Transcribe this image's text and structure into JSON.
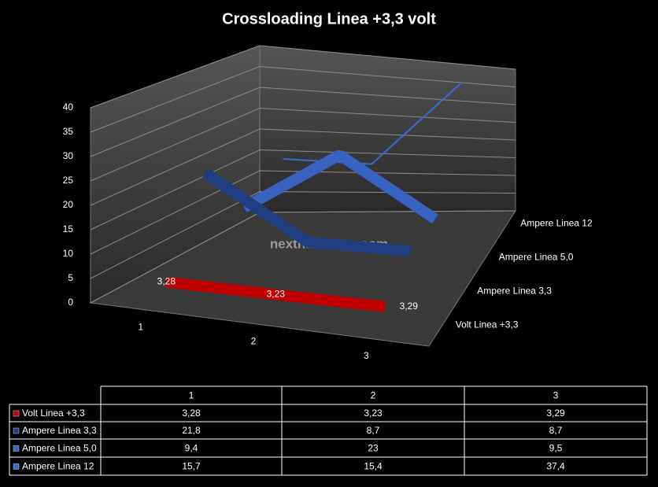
{
  "chart_data": {
    "type": "line3d",
    "title": "Crossloading Linea +3,3 volt",
    "watermark": "nexthardware.com",
    "categories": [
      "1",
      "2",
      "3"
    ],
    "series": [
      {
        "name": "Volt Linea +3,3",
        "color": "#c00000",
        "values": [
          3.28,
          3.23,
          3.29
        ],
        "value_labels": [
          "3,28",
          "3,23",
          "3,29"
        ]
      },
      {
        "name": "Ampere Linea 3,3",
        "color": "#1f3f82",
        "values": [
          21.8,
          8.7,
          8.7
        ],
        "value_labels": [
          "21,8",
          "8,7",
          "8,7"
        ]
      },
      {
        "name": "Ampere Linea 5,0",
        "color": "#3762c0",
        "values": [
          9.4,
          23,
          9.5
        ],
        "value_labels": [
          "9,4",
          "23",
          "9,5"
        ]
      },
      {
        "name": "Ampere Linea 12",
        "color": "#3a6ad4",
        "values": [
          15.7,
          15.4,
          37.4
        ],
        "value_labels": [
          "15,7",
          "15,4",
          "37,4"
        ]
      }
    ],
    "ylim": [
      0,
      40
    ],
    "yticks": [
      0,
      5,
      10,
      15,
      20,
      25,
      30,
      35,
      40
    ],
    "grid": true
  }
}
